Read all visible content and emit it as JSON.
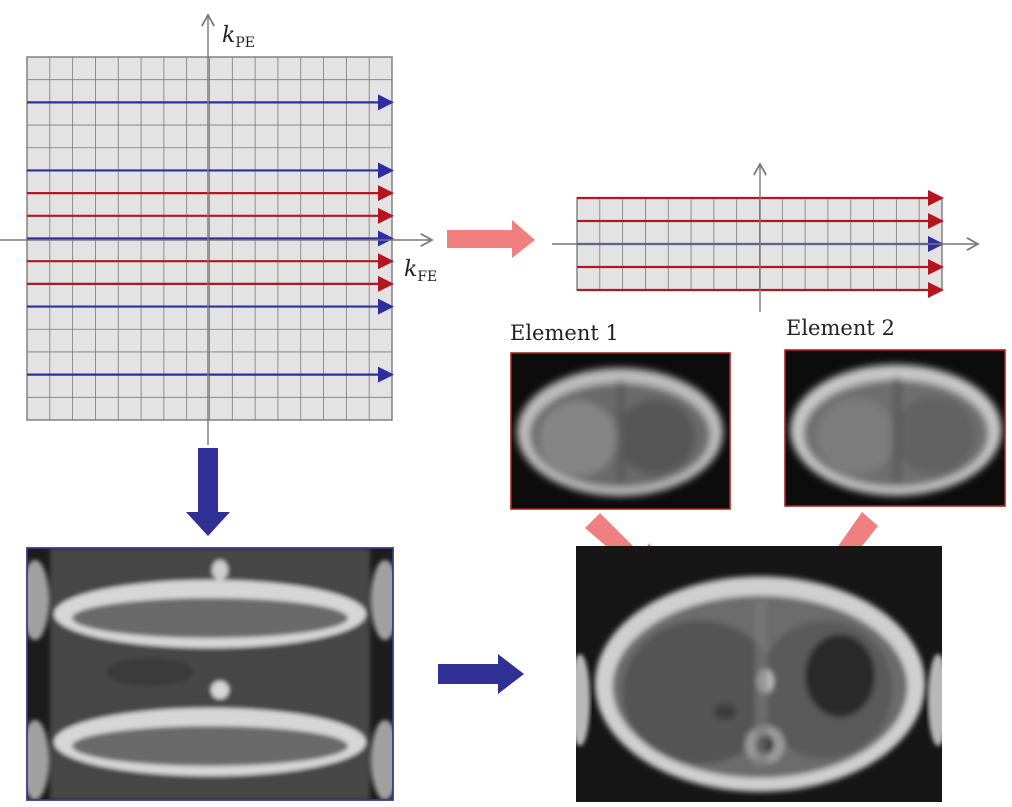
{
  "axes": {
    "phase_encode": {
      "italic": "k",
      "sub": "PE"
    },
    "freq_encode": {
      "italic": "k",
      "sub": "FE"
    }
  },
  "elements": [
    {
      "label": "Element 1"
    },
    {
      "label": "Element 2"
    }
  ],
  "full_kspace": {
    "rows": 16,
    "cols": 16,
    "blue_lines": [
      2,
      5,
      8,
      11,
      14
    ],
    "red_lines": [
      6,
      7,
      9,
      10
    ]
  },
  "reduced_kspace": {
    "rows": 4,
    "cols": 16,
    "line_colors": [
      "red",
      "red",
      "blue",
      "red",
      "red"
    ]
  },
  "colors": {
    "blue_line": "#2e2e9e",
    "red_line": "#b4151f",
    "pink_arrow": "#f08080",
    "navy_arrow": "#2f2f96",
    "grid_fill": "#e3e3e3",
    "grid_stroke": "#7a7a7a",
    "aliased_frame": "#3a3a8a",
    "element_frame": "#b02020"
  },
  "icons": {
    "flow_right_pink": "pink-arrow-right",
    "flow_down_navy": "navy-arrow-down",
    "flow_right_navy": "navy-arrow-right",
    "flow_diag_pink": "pink-arrow-diagonal"
  }
}
